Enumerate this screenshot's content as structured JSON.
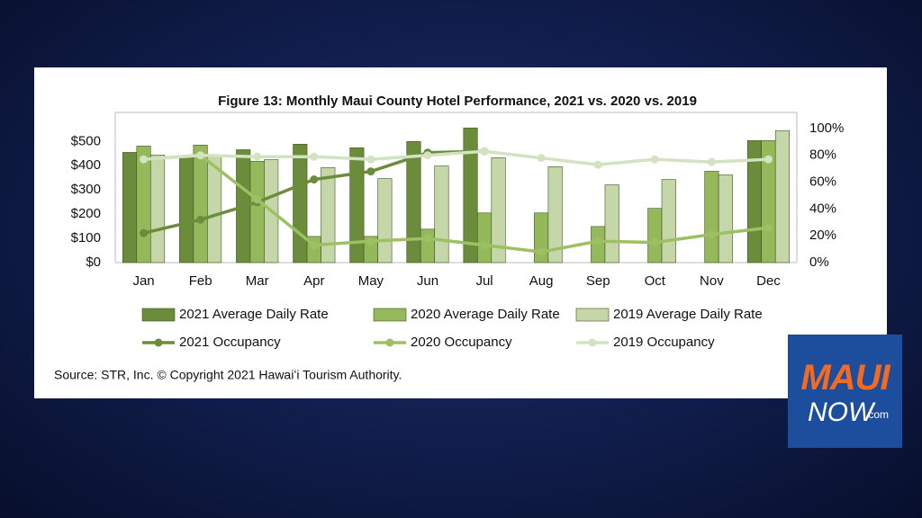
{
  "chart_data": {
    "type": "bar-line",
    "title": "Figure 13: Monthly Maui County Hotel Performance, 2021 vs. 2020 vs. 2019",
    "source": "Source: STR, Inc.  © Copyright 2021 Hawaiʻi Tourism Authority.",
    "categories": [
      "Jan",
      "Feb",
      "Mar",
      "Apr",
      "May",
      "Jun",
      "Jul",
      "Aug",
      "Sep",
      "Oct",
      "Nov",
      "Dec"
    ],
    "ylim": [
      0,
      620
    ],
    "yticks": [
      {
        "value": 0,
        "label": "$0"
      },
      {
        "value": 100,
        "label": "$100"
      },
      {
        "value": 200,
        "label": "$200"
      },
      {
        "value": 300,
        "label": "$300"
      },
      {
        "value": 400,
        "label": "$400"
      },
      {
        "value": 500,
        "label": "$500"
      }
    ],
    "y2lim": [
      0,
      112
    ],
    "y2ticks": [
      {
        "value": 0,
        "label": "0%"
      },
      {
        "value": 20,
        "label": "20%"
      },
      {
        "value": 40,
        "label": "40%"
      },
      {
        "value": 60,
        "label": "60%"
      },
      {
        "value": 80,
        "label": "80%"
      },
      {
        "value": 100,
        "label": "100%"
      }
    ],
    "series": [
      {
        "name": "2021 Average Daily Rate",
        "type": "bar",
        "color": "#6b8c3a",
        "values": [
          455,
          437,
          466,
          489,
          474,
          500,
          556,
          null,
          null,
          null,
          null,
          504
        ]
      },
      {
        "name": "2020 Average Daily Rate",
        "type": "bar",
        "color": "#93b95a",
        "values": [
          481,
          485,
          418,
          108,
          108,
          138,
          205,
          205,
          149,
          224,
          377,
          504
        ]
      },
      {
        "name": "2019 Average Daily Rate",
        "type": "bar",
        "color": "#c5d7a8",
        "values": [
          444,
          440,
          425,
          392,
          347,
          399,
          433,
          396,
          321,
          343,
          362,
          545
        ]
      },
      {
        "name": "2021 Occupancy",
        "type": "line",
        "axis": "y2",
        "color": "#6b8c3a",
        "values": [
          22,
          32,
          45,
          62,
          68,
          82,
          83,
          null,
          null,
          null,
          null,
          null
        ]
      },
      {
        "name": "2020 Occupancy",
        "type": "line",
        "axis": "y2",
        "color": "#9cc062",
        "values": [
          77,
          80,
          47,
          13,
          16,
          18,
          13,
          8,
          16,
          15,
          21,
          26
        ]
      },
      {
        "name": "2019 Occupancy",
        "type": "line",
        "axis": "y2",
        "color": "#d3e2c0",
        "values": [
          77,
          80,
          79,
          79,
          77,
          80,
          83,
          78,
          73,
          77,
          75,
          77
        ]
      }
    ]
  },
  "logo": {
    "brand": "MAUI",
    "sub": "NOW",
    "suffix": ".com"
  }
}
